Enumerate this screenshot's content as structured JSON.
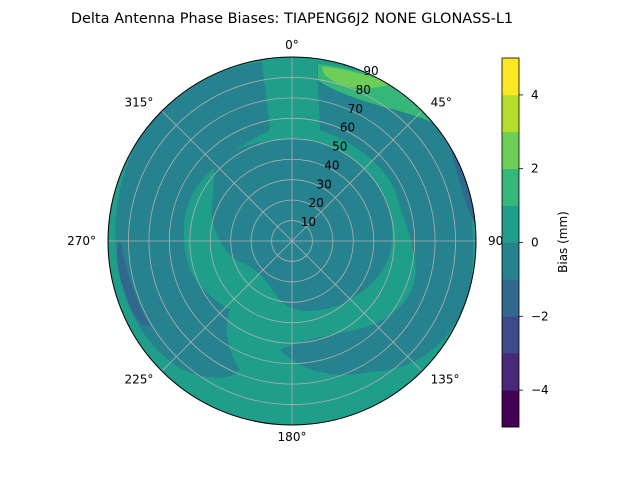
{
  "chart_data": {
    "type": "polar-contour",
    "title": "Delta Antenna Phase Biases: TIAPENG6J2      NONE GLONASS-L1",
    "angle_ticks": [
      {
        "deg": 0,
        "label": "0°"
      },
      {
        "deg": 45,
        "label": "45°"
      },
      {
        "deg": 90,
        "label": "90"
      },
      {
        "deg": 135,
        "label": "135°"
      },
      {
        "deg": 180,
        "label": "180°"
      },
      {
        "deg": 225,
        "label": "225°"
      },
      {
        "deg": 270,
        "label": "270°"
      },
      {
        "deg": 315,
        "label": "315°"
      }
    ],
    "radial_ticks": [
      "10",
      "20",
      "30",
      "40",
      "50",
      "60",
      "70",
      "80",
      "90"
    ],
    "radial_values": [
      10,
      20,
      30,
      40,
      50,
      60,
      70,
      80,
      90
    ],
    "rmax": 90,
    "grid": true,
    "contour_levels": [
      -5,
      -4,
      -3,
      -2,
      -1,
      0,
      1,
      2,
      3,
      4,
      5
    ],
    "contour_colors": [
      "#440154",
      "#482878",
      "#3e4989",
      "#31688e",
      "#26828e",
      "#1f9e89",
      "#35b779",
      "#6ece58",
      "#b5de2b",
      "#fde725"
    ],
    "regions": [
      {
        "name": "base",
        "level": 0.5
      },
      {
        "name": "outer-ring-east",
        "level": -0.5
      },
      {
        "name": "outer-ring-west",
        "level": -0.5
      },
      {
        "name": "inner-center",
        "level": -0.5
      },
      {
        "name": "inner-lower",
        "level": -0.5
      },
      {
        "name": "northeast-rim-mid",
        "level": 1.5
      },
      {
        "name": "northeast-rim-high",
        "level": 2.5
      },
      {
        "name": "west-patch",
        "level": -1.5
      },
      {
        "name": "east-patch",
        "level": -1.5
      }
    ],
    "colorbar": {
      "label": "Bias (mm)",
      "range": [
        -5,
        5
      ],
      "ticks": [
        -4,
        -2,
        0,
        2,
        4
      ],
      "tick_labels": [
        "−4",
        "−2",
        "0",
        "2",
        "4"
      ]
    }
  }
}
